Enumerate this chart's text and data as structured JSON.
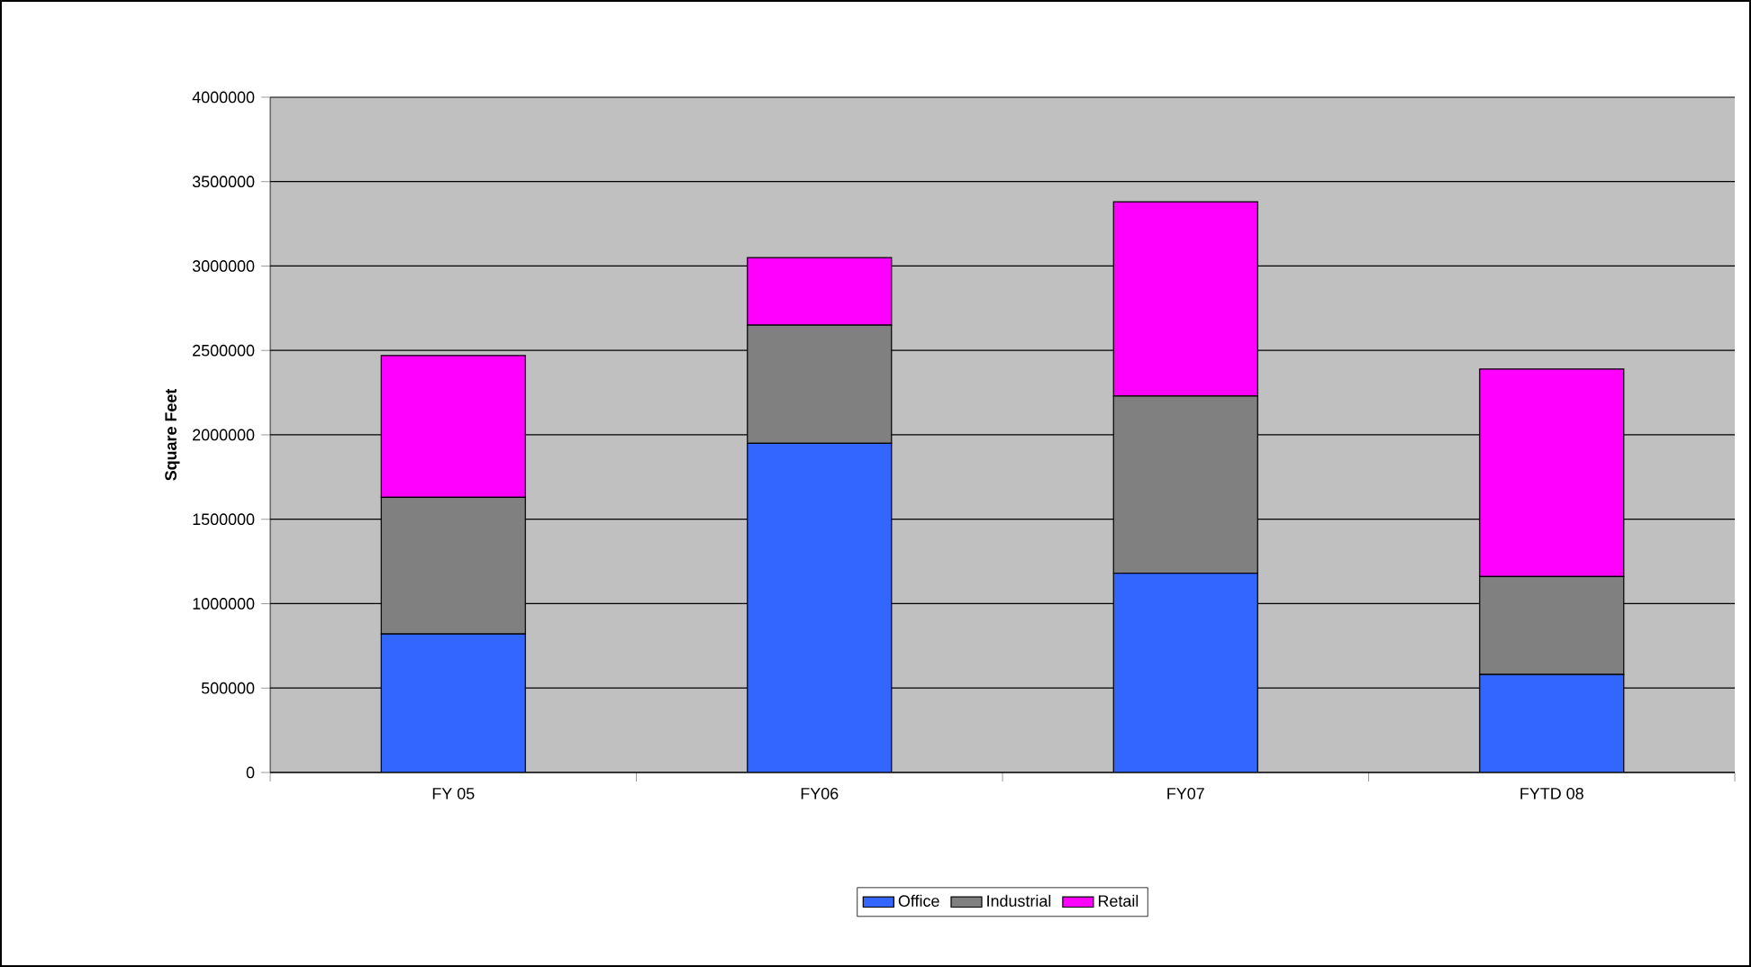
{
  "chart_data": {
    "type": "bar",
    "stacked": true,
    "ylabel": "Square Feet",
    "categories": [
      "FY 05",
      "FY06",
      "FY07",
      "FYTD 08"
    ],
    "series": [
      {
        "name": "Office",
        "color": "#3366ff",
        "values": [
          820000,
          1950000,
          1180000,
          580000
        ]
      },
      {
        "name": "Industrial",
        "color": "#808080",
        "values": [
          810000,
          700000,
          1050000,
          580000
        ]
      },
      {
        "name": "Retail",
        "color": "#ff00ff",
        "values": [
          840000,
          400000,
          1150000,
          1230000
        ]
      }
    ],
    "ylim": [
      0,
      4000000
    ],
    "yticks": [
      0,
      500000,
      1000000,
      1500000,
      2000000,
      2500000,
      3000000,
      3500000,
      4000000
    ],
    "grid": "y",
    "legend": "bottom"
  }
}
